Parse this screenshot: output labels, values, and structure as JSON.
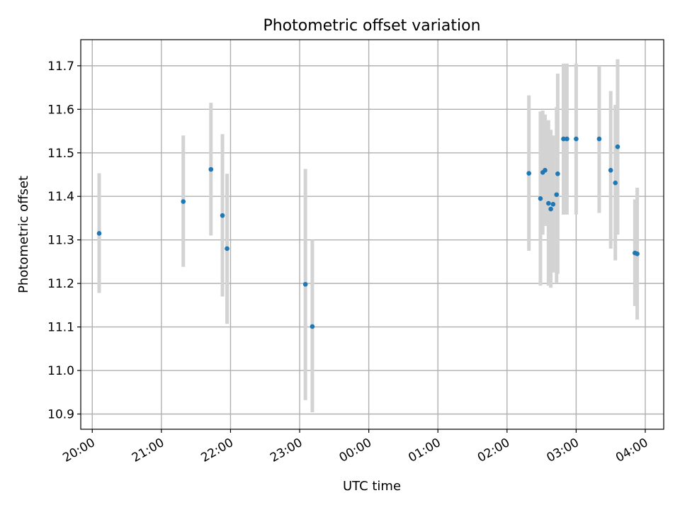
{
  "chart_data": {
    "type": "scatter",
    "title": "Photometric offset variation",
    "xlabel": "UTC time",
    "ylabel": "Photometric offset",
    "x_ticks": [
      "20:00",
      "21:00",
      "22:00",
      "23:00",
      "00:00",
      "01:00",
      "02:00",
      "03:00",
      "04:00"
    ],
    "y_ticks": [
      "10.9",
      "11.0",
      "11.1",
      "11.2",
      "11.3",
      "11.4",
      "11.5",
      "11.6",
      "11.7"
    ],
    "xlim": [
      "19:50",
      "04:16"
    ],
    "ylim": [
      10.865,
      11.76
    ],
    "grid": true,
    "colors": {
      "point": "#1f77b4",
      "errorbar": "#d3d3d3",
      "grid": "#b0b0b0"
    },
    "series": [
      {
        "points": [
          {
            "t": "20:06",
            "y": 11.315,
            "lo": 11.178,
            "hi": 11.453
          },
          {
            "t": "21:19",
            "y": 11.388,
            "lo": 11.238,
            "hi": 11.54
          },
          {
            "t": "21:43",
            "y": 11.462,
            "lo": 11.31,
            "hi": 11.615
          },
          {
            "t": "21:53",
            "y": 11.356,
            "lo": 11.17,
            "hi": 11.543
          },
          {
            "t": "21:57",
            "y": 11.28,
            "lo": 11.107,
            "hi": 11.452
          },
          {
            "t": "23:05",
            "y": 11.198,
            "lo": 10.932,
            "hi": 11.463
          },
          {
            "t": "23:11",
            "y": 11.101,
            "lo": 10.904,
            "hi": 11.3
          },
          {
            "t": "02:19",
            "y": 11.453,
            "lo": 11.275,
            "hi": 11.632
          },
          {
            "t": "02:29",
            "y": 11.395,
            "lo": 11.195,
            "hi": 11.595
          },
          {
            "t": "02:31",
            "y": 11.455,
            "lo": 11.312,
            "hi": 11.597
          },
          {
            "t": "02:33",
            "y": 11.46,
            "lo": 11.332,
            "hi": 11.588
          },
          {
            "t": "02:36",
            "y": 11.384,
            "lo": 11.195,
            "hi": 11.575
          },
          {
            "t": "02:38",
            "y": 11.371,
            "lo": 11.19,
            "hi": 11.553
          },
          {
            "t": "02:40",
            "y": 11.382,
            "lo": 11.225,
            "hi": 11.54
          },
          {
            "t": "02:43",
            "y": 11.404,
            "lo": 11.2,
            "hi": 11.605
          },
          {
            "t": "02:44",
            "y": 11.452,
            "lo": 11.222,
            "hi": 11.682
          },
          {
            "t": "02:49",
            "y": 11.532,
            "lo": 11.358,
            "hi": 11.705
          },
          {
            "t": "02:52",
            "y": 11.532,
            "lo": 11.358,
            "hi": 11.705
          },
          {
            "t": "03:00",
            "y": 11.532,
            "lo": 11.358,
            "hi": 11.705
          },
          {
            "t": "03:20",
            "y": 11.532,
            "lo": 11.362,
            "hi": 11.7
          },
          {
            "t": "03:30",
            "y": 11.46,
            "lo": 11.28,
            "hi": 11.642
          },
          {
            "t": "03:34",
            "y": 11.431,
            "lo": 11.253,
            "hi": 11.61
          },
          {
            "t": "03:36",
            "y": 11.514,
            "lo": 11.312,
            "hi": 11.715
          },
          {
            "t": "03:51",
            "y": 11.27,
            "lo": 11.148,
            "hi": 11.393
          },
          {
            "t": "03:53",
            "y": 11.268,
            "lo": 11.117,
            "hi": 11.42
          }
        ]
      }
    ]
  }
}
